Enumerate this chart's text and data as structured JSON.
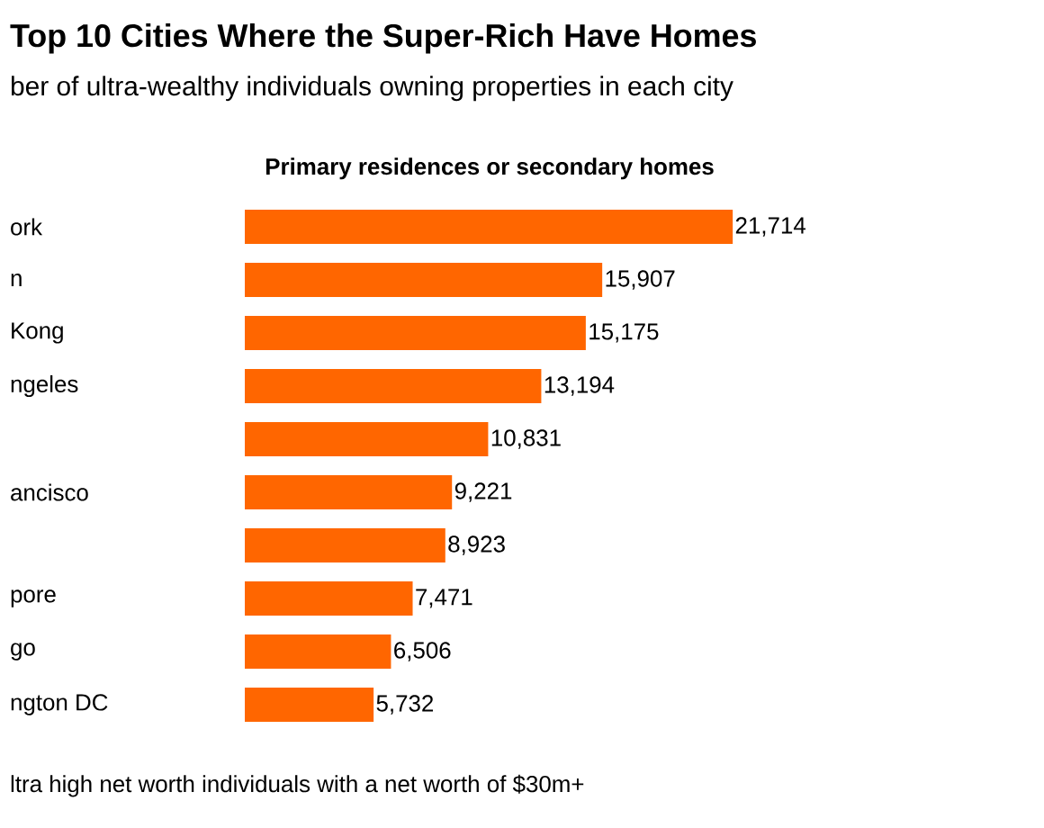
{
  "chart_data": {
    "type": "bar",
    "orientation": "horizontal",
    "title": "Top 10 Cities Where the Super-Rich Have Homes",
    "subtitle": "ber of ultra-wealthy individuals owning properties in each city",
    "categories": [
      "ork",
      "n",
      "Kong",
      "ngeles",
      null,
      "ancisco",
      null,
      "pore",
      "go",
      "ngton DC"
    ],
    "series": [
      {
        "name": "Primary residences or secondary homes",
        "color": "#ff6600",
        "values": [
          21714,
          15907,
          15175,
          13194,
          10831,
          9221,
          8923,
          7471,
          6506,
          5732
        ],
        "value_labels": [
          "21,714",
          "15,907",
          "15,175",
          "13,194",
          "10,831",
          "9,221",
          "8,923",
          "7,471",
          "6,506",
          "5,732"
        ]
      }
    ],
    "grid": false,
    "legend": false,
    "annotations": [
      "ltra high net worth individuals with a net worth of $30m+"
    ]
  }
}
